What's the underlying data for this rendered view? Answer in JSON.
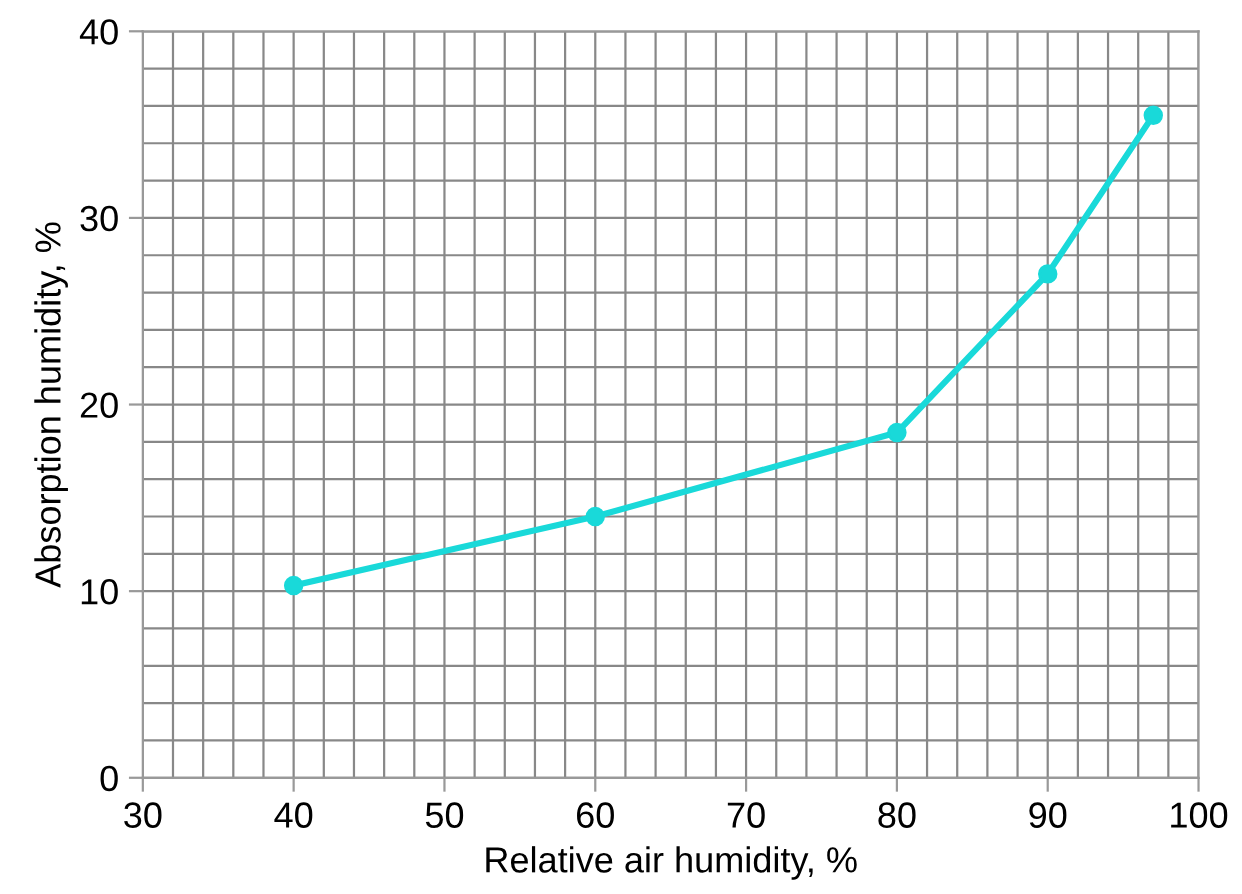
{
  "chart_data": {
    "type": "line",
    "xlabel": "Relative air humidity, %",
    "ylabel": "Absorption humidity, %",
    "x": [
      40,
      60,
      80,
      90,
      97
    ],
    "series": [
      {
        "color": "#19d9d9",
        "values": [
          10.3,
          14,
          18.5,
          27,
          35.5
        ]
      }
    ],
    "xlim": [
      30,
      100
    ],
    "ylim": [
      0,
      40
    ],
    "xticks": [
      30,
      40,
      50,
      60,
      70,
      80,
      90,
      100
    ],
    "yticks": [
      0,
      10,
      20,
      30,
      40
    ],
    "grid": true,
    "marker": "circle",
    "line_style": "solid"
  }
}
